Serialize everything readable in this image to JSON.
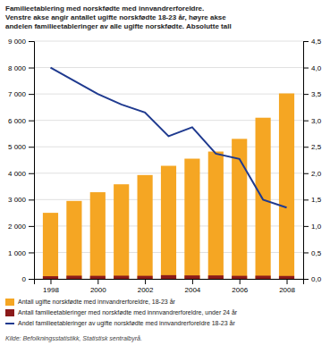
{
  "chart_data": {
    "type": "bar",
    "title": "Familieetablering med norskfødte med innvandrerforeldre.\nVenstre akse angir antallet ugifte norskfødte 18-23 år, høyre akse\nandelen familieetableringer av alle ugifte norskfødte. Absolutte tall",
    "source": "Kilde: Befolkningsstatistikk, Statistisk sentralbyrå.",
    "x": [
      1998,
      1999,
      2000,
      2001,
      2002,
      2003,
      2004,
      2005,
      2006,
      2007,
      2008
    ],
    "xlim": [
      1997.3,
      2008.7
    ],
    "xticks": [
      1998,
      2000,
      2002,
      2004,
      2006,
      2008
    ],
    "series": [
      {
        "name": "Antall ugifte norskfødte med innvandrerforeldre, 18-23 år",
        "type": "bar",
        "color": "#F5A623",
        "values": [
          2500,
          2950,
          3280,
          3580,
          3930,
          4280,
          4550,
          4820,
          5300,
          6100,
          7020
        ]
      },
      {
        "name": "Antall familieetableringer med norskfødte med innnvandrerforeldre, under 24 år",
        "type": "bar",
        "color": "#8B1A1A",
        "values": [
          100,
          120,
          115,
          120,
          115,
          140,
          130,
          130,
          115,
          120,
          110
        ]
      },
      {
        "name": "Andel familieetableringer av ugifte norskfødte med innvandrerforeldre 18-23 år",
        "type": "line",
        "color": "#1F3A8F",
        "axis": "y2",
        "values": [
          4.0,
          3.75,
          3.5,
          3.3,
          3.15,
          2.7,
          2.87,
          2.37,
          2.27,
          1.5,
          1.35
        ]
      }
    ],
    "stacked": false,
    "ylim": [
      0,
      9000
    ],
    "yticks": [
      0,
      {
        "value": 1000,
        "label": "1 000"
      },
      {
        "value": 2000,
        "label": "2 000"
      },
      {
        "value": 3000,
        "label": "3 000"
      },
      {
        "value": 4000,
        "label": "4 000"
      },
      {
        "value": 5000,
        "label": "5 000"
      },
      {
        "value": 6000,
        "label": "6 000"
      },
      {
        "value": 7000,
        "label": "7 000"
      },
      {
        "value": 8000,
        "label": "8 000"
      },
      {
        "value": 9000,
        "label": "9 000"
      }
    ],
    "y2lim": [
      0,
      4.5
    ],
    "y2ticks": [
      {
        "value": 0.0,
        "label": "0,0"
      },
      {
        "value": 0.5,
        "label": "0,5"
      },
      {
        "value": 1.0,
        "label": "1,0"
      },
      {
        "value": 1.5,
        "label": "1,5"
      },
      {
        "value": 2.0,
        "label": "2,0"
      },
      {
        "value": 2.5,
        "label": "2,5"
      },
      {
        "value": 3.0,
        "label": "3,0"
      },
      {
        "value": 3.5,
        "label": "3,5"
      },
      {
        "value": 4.0,
        "label": "4,0"
      },
      {
        "value": 4.5,
        "label": "4,5"
      }
    ],
    "grid": true,
    "legend": "bottom"
  }
}
